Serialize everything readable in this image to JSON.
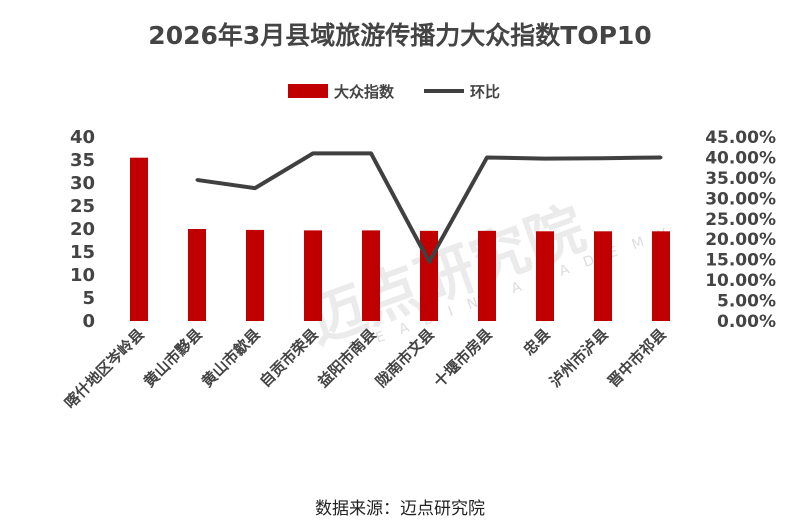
{
  "chart_data": {
    "type": "bar",
    "title": "2026年3月县域旅游传播力大众指数TOP10",
    "categories": [
      "喀什地区岑岭县",
      "黄山市黟县",
      "黄山市歙县",
      "自贡市荣县",
      "益阳市南县",
      "陇南市文县",
      "十堰市房县",
      "忠县",
      "泸州市泸县",
      "晋中市祁县"
    ],
    "series": [
      {
        "name": "大众指数",
        "type": "bar",
        "axis": "left",
        "color": "#c00000",
        "values": [
          35.5,
          20.0,
          19.8,
          19.7,
          19.7,
          19.6,
          19.6,
          19.5,
          19.5,
          19.5
        ]
      },
      {
        "name": "环比",
        "type": "line",
        "axis": "right",
        "color": "#404040",
        "values": [
          null,
          0.345,
          0.325,
          0.41,
          0.41,
          0.145,
          0.4,
          0.397,
          0.398,
          0.4
        ]
      }
    ],
    "y_left": {
      "min": 0,
      "max": 40,
      "ticks": [
        "0",
        "5",
        "10",
        "15",
        "20",
        "25",
        "30",
        "35",
        "40"
      ]
    },
    "y_right": {
      "min": 0,
      "max": 0.45,
      "ticks": [
        "0.00%",
        "5.00%",
        "10.00%",
        "15.00%",
        "20.00%",
        "25.00%",
        "30.00%",
        "35.00%",
        "40.00%",
        "45.00%"
      ]
    },
    "legend_position": "top",
    "source": "数据来源：迈点研究院"
  },
  "watermark": {
    "brand_cn": "迈点研究院",
    "brand_en": "MEADIN ACADEMY"
  }
}
